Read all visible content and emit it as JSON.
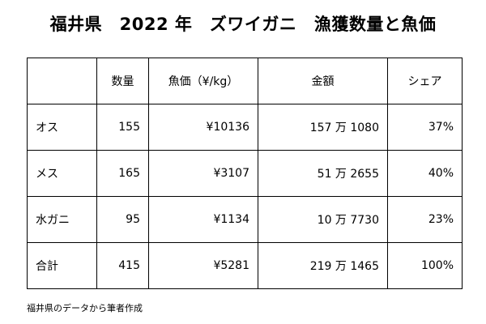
{
  "title": "福井県　2022 年　ズワイガニ　漁獲数量と魚価",
  "table": {
    "header": [
      "数量",
      "魚価（¥/kg）",
      "金額",
      "シェア"
    ],
    "rows": [
      [
        "オス",
        155,
        "¥10136",
        "157 万 1080",
        "37%"
      ],
      [
        "メス",
        165,
        "¥3107",
        "51 万 2655",
        "40%"
      ],
      [
        "水ガニ",
        95,
        "¥1134",
        "10 万 7730",
        "23%"
      ],
      [
        "合計",
        415,
        "¥5281",
        "219 万 1465",
        "100%"
      ]
    ]
  },
  "note": "福井県のデータから筆者作成"
}
